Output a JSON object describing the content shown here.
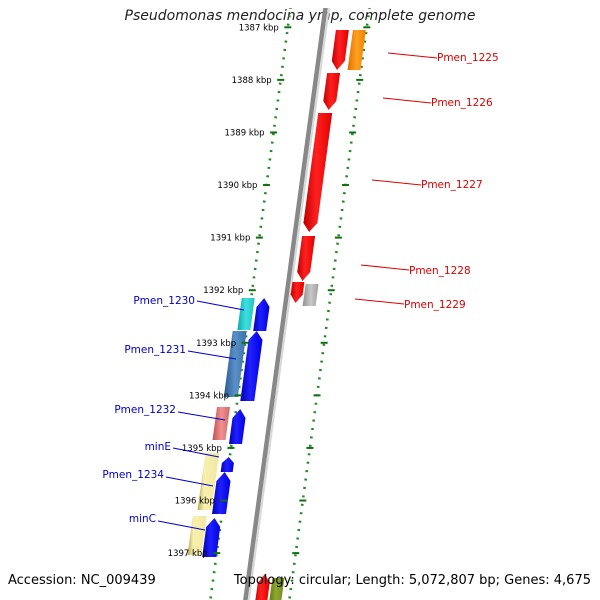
{
  "title": "Pseudomonas mendocina ymp, complete genome",
  "accession": "Accession: NC_009439",
  "summary": "Topology: circular; Length: 5,072,807 bp; Genes: 4,675",
  "ruler": {
    "partial_label": "1387 kbp",
    "labels": [
      "1388 kbp",
      "1389 kbp",
      "1390 kbp",
      "1391 kbp",
      "1392 kbp",
      "1393 kbp",
      "1394 kbp",
      "1395 kbp",
      "1396 kbp",
      "1397 kbp"
    ]
  },
  "colors": {
    "forward_label": "#0000cc",
    "reverse_label": "#dd0000",
    "backbone": "#888888",
    "ruler_dots": "#228822",
    "forward_gene": "#0000ff",
    "reverse_gene": "#ff0000"
  },
  "genes_right": [
    {
      "name": "Pmen_1225"
    },
    {
      "name": "Pmen_1226"
    },
    {
      "name": "Pmen_1227"
    },
    {
      "name": "Pmen_1228"
    },
    {
      "name": "Pmen_1229"
    }
  ],
  "genes_left": [
    {
      "name": "Pmen_1230"
    },
    {
      "name": "Pmen_1231"
    },
    {
      "name": "Pmen_1232"
    },
    {
      "name": "minE"
    },
    {
      "name": "Pmen_1234"
    },
    {
      "name": "minC"
    }
  ]
}
